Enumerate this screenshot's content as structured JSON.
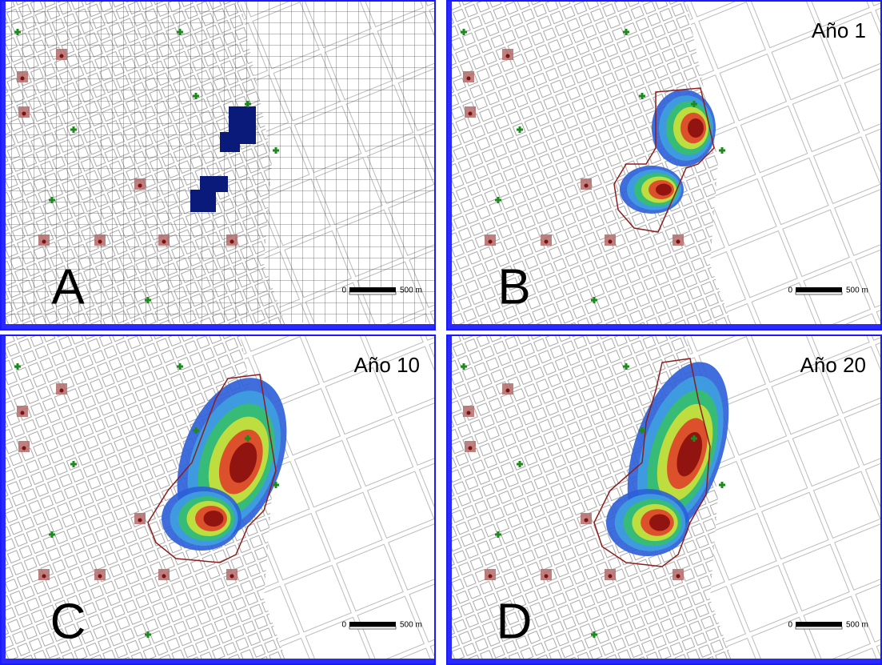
{
  "panels": [
    {
      "letter": "A",
      "scale_zero": "0",
      "scale_label": "500 m"
    },
    {
      "letter": "B",
      "year": "Año 1",
      "scale_zero": "0",
      "scale_label": "500 m"
    },
    {
      "letter": "C",
      "year": "Año 10",
      "scale_zero": "0",
      "scale_label": "500 m"
    },
    {
      "letter": "D",
      "year": "Año 20",
      "scale_zero": "0",
      "scale_label": "500 m"
    }
  ]
}
